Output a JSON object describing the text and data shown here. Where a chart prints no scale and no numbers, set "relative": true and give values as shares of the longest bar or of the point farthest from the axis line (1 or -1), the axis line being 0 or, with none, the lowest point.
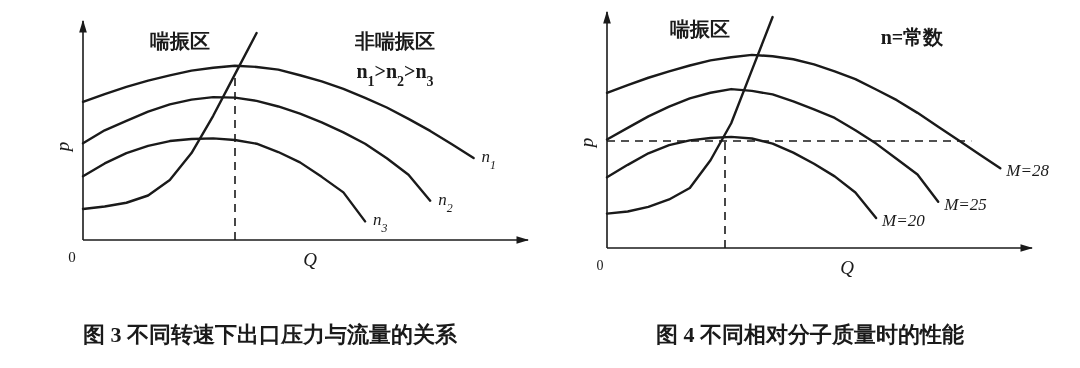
{
  "chart_data": [
    {
      "type": "line",
      "relative": true,
      "title": "图 3 不同转速下出口压力与流量的关系",
      "xlabel": "Q",
      "ylabel": "p",
      "annotations": [
        "喘振区",
        "非喘振区",
        "n$_{1}$>n$_{2}$>n$_{3}$",
        "0"
      ],
      "color": "#1a1a1a",
      "categories": [
        null,
        null,
        null,
        null,
        null,
        null,
        null,
        null,
        null,
        null,
        null,
        null,
        null,
        null,
        null,
        null,
        null,
        null,
        null,
        null,
        null
      ],
      "series": [
        {
          "name": "n$_{1}$",
          "values": [
            0.667,
            0.705,
            0.74,
            0.77,
            0.795,
            0.818,
            0.832,
            0.842,
            0.836,
            0.823,
            0.796,
            0.766,
            0.73,
            0.687,
            0.64,
            0.585,
            0.527,
            0.463,
            0.396,
            null,
            null
          ]
        },
        {
          "name": "n$_{2}$",
          "values": [
            0.467,
            0.53,
            0.575,
            0.62,
            0.655,
            0.678,
            0.69,
            0.688,
            0.672,
            0.645,
            0.61,
            0.568,
            0.52,
            0.465,
            0.395,
            0.315,
            0.19,
            null,
            null,
            null,
            null
          ]
        },
        {
          "name": "n$_{3}$",
          "values": [
            0.308,
            0.37,
            0.42,
            0.455,
            0.478,
            0.488,
            0.491,
            0.483,
            0.465,
            0.425,
            0.375,
            0.305,
            0.23,
            0.09,
            null,
            null,
            null,
            null,
            null,
            null,
            null
          ]
        },
        {
          "values": [
            0.15,
            0.162,
            0.18,
            0.215,
            0.29,
            0.42,
            0.6,
            0.8,
            1.0,
            null,
            null,
            null,
            null,
            null,
            null,
            null,
            null,
            null,
            null,
            null,
            null
          ]
        }
      ]
    },
    {
      "type": "line",
      "relative": true,
      "title": "图 4 不同相对分子质量时的性能",
      "xlabel": "Q",
      "ylabel": "p",
      "annotations": [
        "喘振区",
        "n=常数",
        "0"
      ],
      "color": "#1a1a1a",
      "categories": [
        null,
        null,
        null,
        null,
        null,
        null,
        null,
        null,
        null,
        null,
        null,
        null,
        null,
        null,
        null,
        null,
        null,
        null,
        null,
        null,
        null
      ],
      "ref_lines": [
        {
          "axis": "y",
          "value": 0.463,
          "line_style": "dashed"
        }
      ],
      "series": [
        {
          "name": "M=28",
          "values": [
            0.672,
            0.705,
            0.737,
            0.765,
            0.79,
            0.812,
            0.826,
            0.836,
            0.83,
            0.817,
            0.795,
            0.765,
            0.731,
            0.686,
            0.64,
            0.585,
            0.525,
            0.465,
            0.405,
            0.345,
            null
          ]
        },
        {
          "name": "M=25",
          "values": [
            0.47,
            0.52,
            0.57,
            0.612,
            0.648,
            0.672,
            0.688,
            0.68,
            0.665,
            0.635,
            0.6,
            0.563,
            0.51,
            0.452,
            0.385,
            0.318,
            0.2,
            null,
            null,
            null,
            null
          ]
        },
        {
          "name": "M=20",
          "values": [
            0.306,
            0.36,
            0.41,
            0.445,
            0.466,
            0.476,
            0.481,
            0.474,
            0.452,
            0.413,
            0.365,
            0.31,
            0.24,
            0.13,
            null,
            null,
            null,
            null,
            null,
            null,
            null
          ]
        },
        {
          "values": [
            0.149,
            0.158,
            0.178,
            0.21,
            0.26,
            0.38,
            0.54,
            0.77,
            1.0,
            null,
            null,
            null,
            null,
            null,
            null,
            null,
            null,
            null,
            null,
            null,
            null
          ]
        }
      ]
    }
  ]
}
